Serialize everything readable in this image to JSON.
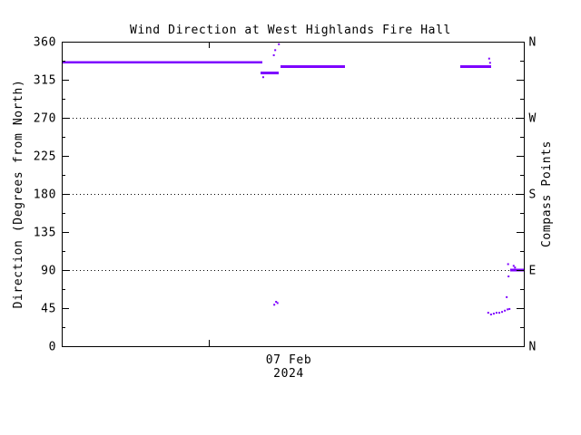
{
  "page": {
    "background": "#ffffff"
  },
  "chart_data": {
    "type": "line",
    "title": "Wind Direction at West Highlands Fire Hall",
    "ylabel": "Direction (Degrees from North)",
    "right_axis_label": "Compass Points",
    "date_label_line1": "07 Feb",
    "date_label_line2": "2024",
    "ylim": [
      0,
      360
    ],
    "yticks": [
      0,
      45,
      90,
      135,
      180,
      225,
      270,
      315,
      360
    ],
    "minor_ytick_step": 22.5,
    "compass_labels": [
      {
        "deg": 360,
        "label": "N"
      },
      {
        "deg": 270,
        "label": "W"
      },
      {
        "deg": 180,
        "label": "S"
      },
      {
        "deg": 90,
        "label": "E"
      },
      {
        "deg": 0,
        "label": "N"
      }
    ],
    "gridlines_deg": [
      270,
      180,
      90
    ],
    "x_major_tick_frac": 0.318,
    "grid_on": true,
    "legend": "none",
    "colors": {
      "series": "#7d00ff",
      "axis": "#000000"
    },
    "segments": [
      {
        "x0": 0.0,
        "x1": 0.434,
        "deg": 335.5
      },
      {
        "x0": 0.43,
        "x1": 0.47,
        "deg": 323
      },
      {
        "x0": 0.473,
        "x1": 0.613,
        "deg": 330.5
      },
      {
        "x0": 0.862,
        "x1": 0.929,
        "deg": 330.5
      },
      {
        "x0": 0.971,
        "x1": 1.0,
        "deg": 90
      }
    ],
    "points": [
      {
        "x": 0.436,
        "deg": 318
      },
      {
        "x": 0.459,
        "deg": 344
      },
      {
        "x": 0.462,
        "deg": 350
      },
      {
        "x": 0.47,
        "deg": 357
      },
      {
        "x": 0.46,
        "deg": 49
      },
      {
        "x": 0.464,
        "deg": 52.5
      },
      {
        "x": 0.467,
        "deg": 51
      },
      {
        "x": 0.925,
        "deg": 340
      },
      {
        "x": 0.927,
        "deg": 335
      },
      {
        "x": 0.923,
        "deg": 39.5
      },
      {
        "x": 0.929,
        "deg": 37.5
      },
      {
        "x": 0.935,
        "deg": 38.5
      },
      {
        "x": 0.941,
        "deg": 39.5
      },
      {
        "x": 0.947,
        "deg": 39.5
      },
      {
        "x": 0.953,
        "deg": 40.5
      },
      {
        "x": 0.959,
        "deg": 42
      },
      {
        "x": 0.965,
        "deg": 43.5
      },
      {
        "x": 0.969,
        "deg": 44
      },
      {
        "x": 0.963,
        "deg": 58
      },
      {
        "x": 0.967,
        "deg": 82.5
      },
      {
        "x": 0.966,
        "deg": 97
      },
      {
        "x": 0.978,
        "deg": 95
      },
      {
        "x": 0.981,
        "deg": 93
      }
    ]
  }
}
